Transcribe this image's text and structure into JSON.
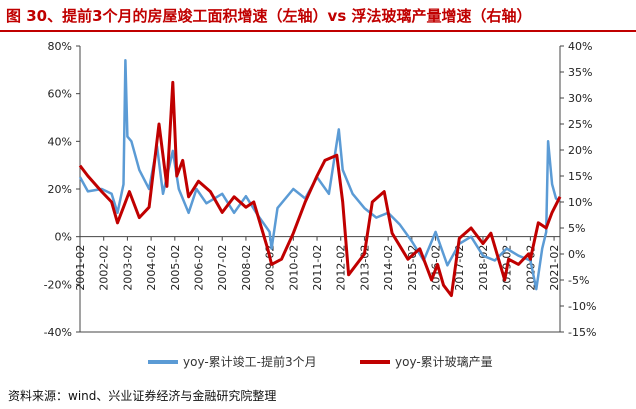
{
  "title": "图 30、提前3个月的房屋竣工面积增速（左轴）vs 浮法玻璃产量增速（右轴）",
  "source": "资料来源：wind、兴业证券经济与金融研究院整理",
  "colors": {
    "title": "#c00000",
    "series_completion": "#5b9bd5",
    "series_glass": "#c00000",
    "axis": "#333333"
  },
  "chart_data": {
    "type": "line",
    "title": "图 30、提前3个月的房屋竣工面积增速（左轴）vs 浮法玻璃产量增速（右轴）",
    "x_range": [
      "2001-02",
      "2021-05"
    ],
    "x_ticks": [
      "2001-02",
      "2002-02",
      "2003-02",
      "2004-02",
      "2005-02",
      "2006-02",
      "2007-02",
      "2008-02",
      "2009-02",
      "2010-02",
      "2011-02",
      "2012-02",
      "2013-02",
      "2014-02",
      "2015-02",
      "2016-02",
      "2017-02",
      "2018-02",
      "2019-02",
      "2020-02",
      "2021-02"
    ],
    "y_left": {
      "ticks": [
        "-40%",
        "-20%",
        "0%",
        "20%",
        "40%",
        "60%",
        "80%"
      ],
      "range": [
        -40,
        80
      ]
    },
    "y_right": {
      "ticks": [
        "-15%",
        "-10%",
        "-5%",
        "0%",
        "5%",
        "10%",
        "15%",
        "20%",
        "25%",
        "30%",
        "35%",
        "40%"
      ],
      "range": [
        -15,
        40
      ]
    },
    "legend_position": "bottom-center",
    "grid": false,
    "series": [
      {
        "name": "yoy-累计竣工-提前3个月",
        "axis": "left",
        "x": [
          "2001-02",
          "2001-06",
          "2002-01",
          "2002-06",
          "2002-09",
          "2002-12",
          "2003-01",
          "2003-02",
          "2003-04",
          "2003-08",
          "2004-01",
          "2004-05",
          "2004-08",
          "2005-01",
          "2005-04",
          "2005-09",
          "2006-01",
          "2006-06",
          "2007-02",
          "2007-08",
          "2008-02",
          "2008-08",
          "2009-02",
          "2009-03",
          "2009-06",
          "2010-02",
          "2010-08",
          "2011-02",
          "2011-08",
          "2012-01",
          "2012-03",
          "2012-08",
          "2013-02",
          "2013-08",
          "2014-02",
          "2014-08",
          "2015-02",
          "2015-08",
          "2016-02",
          "2016-08",
          "2017-02",
          "2017-08",
          "2018-02",
          "2018-08",
          "2019-02",
          "2019-08",
          "2020-02",
          "2020-05",
          "2020-08",
          "2020-10",
          "2020-11",
          "2021-01",
          "2021-03",
          "2021-05"
        ],
        "y": [
          25,
          19,
          20,
          18,
          10,
          22,
          74,
          42,
          40,
          28,
          20,
          38,
          18,
          36,
          20,
          10,
          20,
          14,
          18,
          10,
          17,
          9,
          2,
          -5,
          12,
          20,
          16,
          25,
          18,
          45,
          28,
          18,
          12,
          8,
          10,
          5,
          -2,
          -10,
          2,
          -12,
          -3,
          0,
          -8,
          -10,
          -5,
          -8,
          -10,
          -22,
          -5,
          2,
          40,
          22,
          16,
          15
        ]
      },
      {
        "name": "yoy-累计玻璃产量",
        "axis": "right",
        "x": [
          "2001-02",
          "2001-06",
          "2002-01",
          "2002-06",
          "2002-09",
          "2002-12",
          "2003-03",
          "2003-08",
          "2004-01",
          "2004-06",
          "2004-10",
          "2005-01",
          "2005-03",
          "2005-06",
          "2005-09",
          "2006-02",
          "2006-08",
          "2007-02",
          "2007-08",
          "2008-02",
          "2008-06",
          "2009-01",
          "2009-03",
          "2009-08",
          "2010-02",
          "2010-08",
          "2011-02",
          "2011-06",
          "2011-12",
          "2012-03",
          "2012-06",
          "2013-02",
          "2013-06",
          "2013-12",
          "2014-04",
          "2014-12",
          "2015-06",
          "2015-12",
          "2016-03",
          "2016-06",
          "2016-10",
          "2017-02",
          "2017-08",
          "2018-02",
          "2018-06",
          "2019-01",
          "2019-03",
          "2019-08",
          "2020-01",
          "2020-02",
          "2020-06",
          "2020-10",
          "2021-01",
          "2021-05"
        ],
        "y": [
          17,
          15,
          12,
          10,
          6,
          9,
          12,
          7,
          9,
          25,
          13,
          33,
          15,
          18,
          11,
          14,
          12,
          8,
          11,
          9,
          10,
          1,
          -2,
          -1,
          4,
          10,
          15,
          18,
          19,
          10,
          -4,
          0,
          10,
          12,
          4,
          -1,
          1,
          -5,
          -2,
          -6,
          -8,
          3,
          5,
          2,
          4,
          -5,
          -1,
          -2,
          0,
          -1,
          6,
          5,
          8,
          11
        ]
      }
    ]
  }
}
